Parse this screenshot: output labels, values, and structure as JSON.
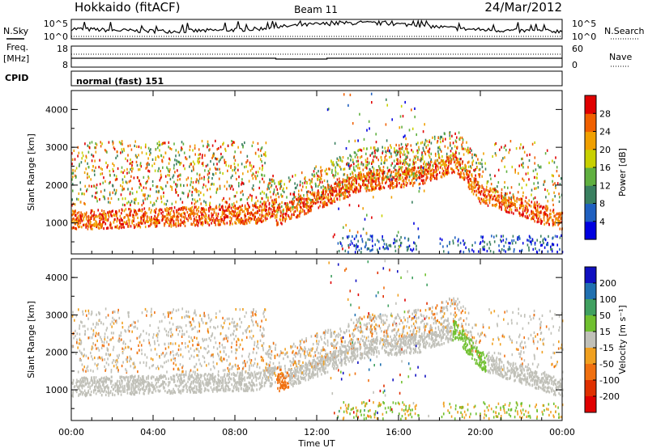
{
  "header": {
    "radar": "Hokkaido (fitACF)",
    "beam": "Beam 11",
    "date": "24/Mar/2012"
  },
  "noise_panel": {
    "left_label": "N.Sky",
    "right_label": "N.Search",
    "tick_top": "10^5",
    "tick_bottom": "10^0"
  },
  "freq_panel": {
    "left_label_1": "Freq.",
    "left_label_2": "[MHz]",
    "left_tick_top": "18",
    "left_tick_bottom": "8",
    "right_label": "Nave",
    "right_tick_top": "60",
    "right_tick_bottom": "0"
  },
  "cpid_panel": {
    "label": "CPID",
    "value": "normal (fast) 151"
  },
  "chart_data": [
    {
      "type": "heatmap",
      "name": "power",
      "ylabel": "Slant Range [km]",
      "y_ticks": [
        "1000",
        "2000",
        "3000",
        "4000"
      ],
      "ylim": [
        180,
        4500
      ],
      "colorbar_label": "Power [dB]",
      "colorbar_ticks": [
        "4",
        "8",
        "12",
        "16",
        "20",
        "24",
        "28"
      ],
      "colorbar_colors": [
        "#0000e0",
        "#2060c0",
        "#3a8060",
        "#60b040",
        "#c8d000",
        "#f0a000",
        "#f06000",
        "#e00000"
      ]
    },
    {
      "type": "heatmap",
      "name": "velocity",
      "ylabel": "Slant Range [km]",
      "y_ticks": [
        "1000",
        "2000",
        "3000",
        "4000"
      ],
      "ylim": [
        180,
        4500
      ],
      "xlabel": "Time UT",
      "x_ticks": [
        "00:00",
        "04:00",
        "08:00",
        "12:00",
        "16:00",
        "20:00",
        "00:00"
      ],
      "colorbar_label": "Velocity [m s⁻¹]",
      "colorbar_ticks": [
        "200",
        "100",
        "50",
        "15",
        "-15",
        "-50",
        "-100",
        "-200"
      ],
      "colorbar_colors": [
        "#1010c0",
        "#2070b0",
        "#40a060",
        "#70c030",
        "#c0c0b8",
        "#f0a020",
        "#f07010",
        "#e03000",
        "#e00000"
      ]
    }
  ]
}
